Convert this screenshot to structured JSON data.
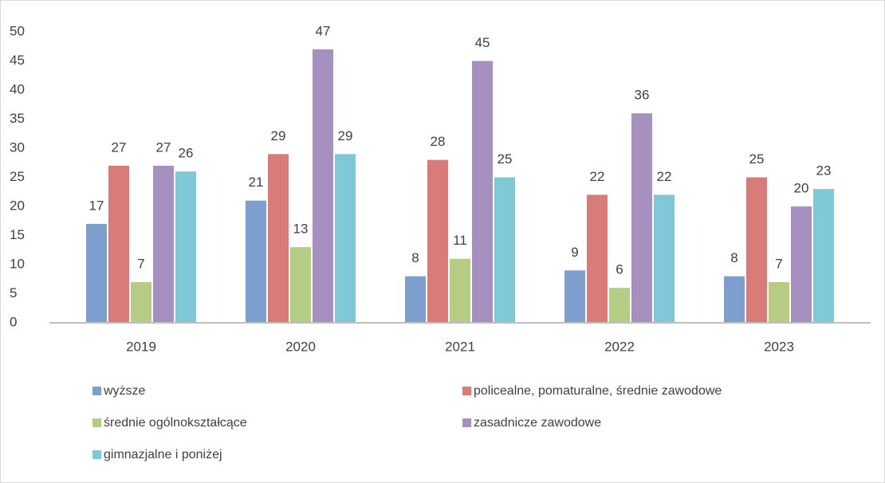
{
  "chart_data": {
    "type": "bar",
    "categories": [
      "2019",
      "2020",
      "2021",
      "2022",
      "2023"
    ],
    "series": [
      {
        "name": "wyższe",
        "color": "#7d9fce",
        "values": [
          17,
          21,
          8,
          9,
          8
        ]
      },
      {
        "name": "policealne, pomaturalne, średnie zawodowe",
        "color": "#d97b78",
        "values": [
          27,
          29,
          28,
          22,
          25
        ]
      },
      {
        "name": "średnie ogólnokształcące",
        "color": "#b5cc85",
        "values": [
          7,
          13,
          11,
          6,
          7
        ]
      },
      {
        "name": "zasadnicze zawodowe",
        "color": "#a690c0",
        "values": [
          27,
          47,
          45,
          36,
          20
        ]
      },
      {
        "name": "gimnazjalne i poniżej",
        "color": "#7ec8d8",
        "values": [
          26,
          29,
          25,
          22,
          23
        ]
      }
    ],
    "ylim": [
      0,
      50
    ],
    "yticks": [
      0,
      5,
      10,
      15,
      20,
      25,
      30,
      35,
      40,
      45,
      50
    ],
    "grid": false,
    "legend": "bottom"
  }
}
